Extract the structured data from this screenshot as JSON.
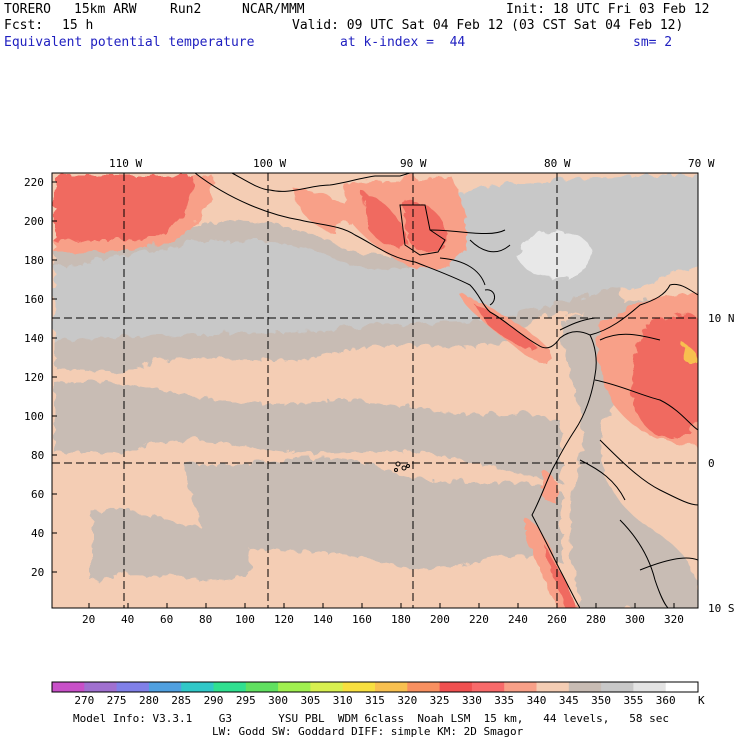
{
  "header": {
    "model": "TORERO",
    "resolution": "15km ARW",
    "run": "Run2",
    "org": "NCAR/MMM",
    "init": "Init: 18 UTC Fri 03 Feb 12",
    "fcst_label": "Fcst:",
    "fcst_value": "15 h",
    "valid": "Valid: 09 UTC Sat 04 Feb 12 (03 CST Sat 04 Feb 12)",
    "field": "Equivalent potential temperature",
    "level": "at k-index =  44",
    "smooth": "sm= 2"
  },
  "map": {
    "top_lon_labels": [
      "110 W",
      "100 W",
      "90 W",
      "80 W",
      "70 W"
    ],
    "right_lat_labels": [
      "10 N",
      "0",
      "10 S"
    ],
    "y_ticks": [
      "220",
      "200",
      "180",
      "160",
      "140",
      "120",
      "100",
      "80",
      "60",
      "40",
      "20"
    ],
    "x_ticks": [
      "20",
      "40",
      "60",
      "80",
      "100",
      "120",
      "140",
      "160",
      "180",
      "200",
      "220",
      "240",
      "260",
      "280",
      "300",
      "320"
    ]
  },
  "colorbar": {
    "labels": [
      "270",
      "275",
      "280",
      "285",
      "290",
      "295",
      "300",
      "305",
      "310",
      "315",
      "320",
      "325",
      "330",
      "335",
      "340",
      "345",
      "350",
      "355",
      "360"
    ],
    "unit": "K",
    "colors": [
      "#c850c8",
      "#a070d0",
      "#8080e8",
      "#50a0e0",
      "#30c8c8",
      "#30e090",
      "#60e060",
      "#a0f050",
      "#d8f050",
      "#f8e040",
      "#f8c050",
      "#f89060",
      "#f05050",
      "#f86a6a",
      "#f8a088",
      "#f4cdb4",
      "#c8bcb4",
      "#c8c8c8",
      "#e4e4e4",
      "#ffffff"
    ]
  },
  "footer": {
    "line1": "Model Info: V3.3.1    G3       YSU PBL  WDM 6class  Noah LSM  15 km,   44 levels,   58 sec",
    "line2": "LW: Godd SW: Goddard DIFF: simple KM: 2D Smagor"
  }
}
